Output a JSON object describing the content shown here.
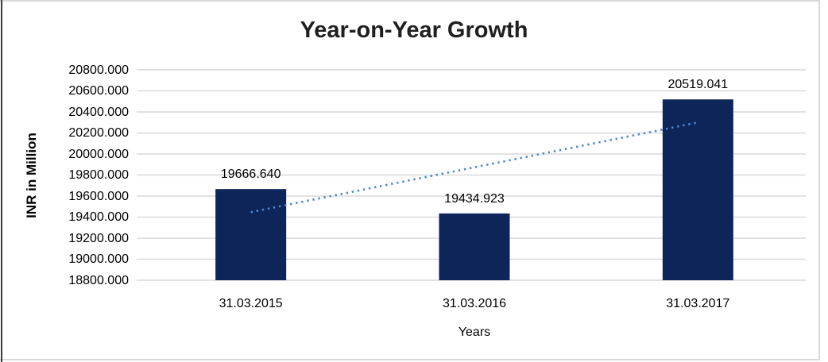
{
  "chart_data": {
    "type": "bar",
    "title": "Year-on-Year Growth",
    "xlabel": "Years",
    "ylabel": "INR in Million",
    "categories": [
      "31.03.2015",
      "31.03.2016",
      "31.03.2017"
    ],
    "values": [
      19666.64,
      19434.923,
      20519.041
    ],
    "data_labels": [
      "19666.640",
      "19434.923",
      "20519.041"
    ],
    "ylim": [
      18800,
      20800
    ],
    "ytick_step": 200,
    "ytick_labels": [
      "20800.000",
      "20600.000",
      "20400.000",
      "20200.000",
      "20000.000",
      "19800.000",
      "19600.000",
      "19400.000",
      "19200.000",
      "19000.000",
      "18800.000"
    ],
    "grid": true,
    "legend_position": "none",
    "trendline": {
      "type": "linear",
      "style": "dotted"
    },
    "colors": {
      "bar": "#0e2559",
      "trendline": "#4e86d0",
      "gridline": "#d9d9d9",
      "title_text": "#1f1f1f",
      "axis_text": "#000000",
      "background": "#ffffff"
    }
  }
}
